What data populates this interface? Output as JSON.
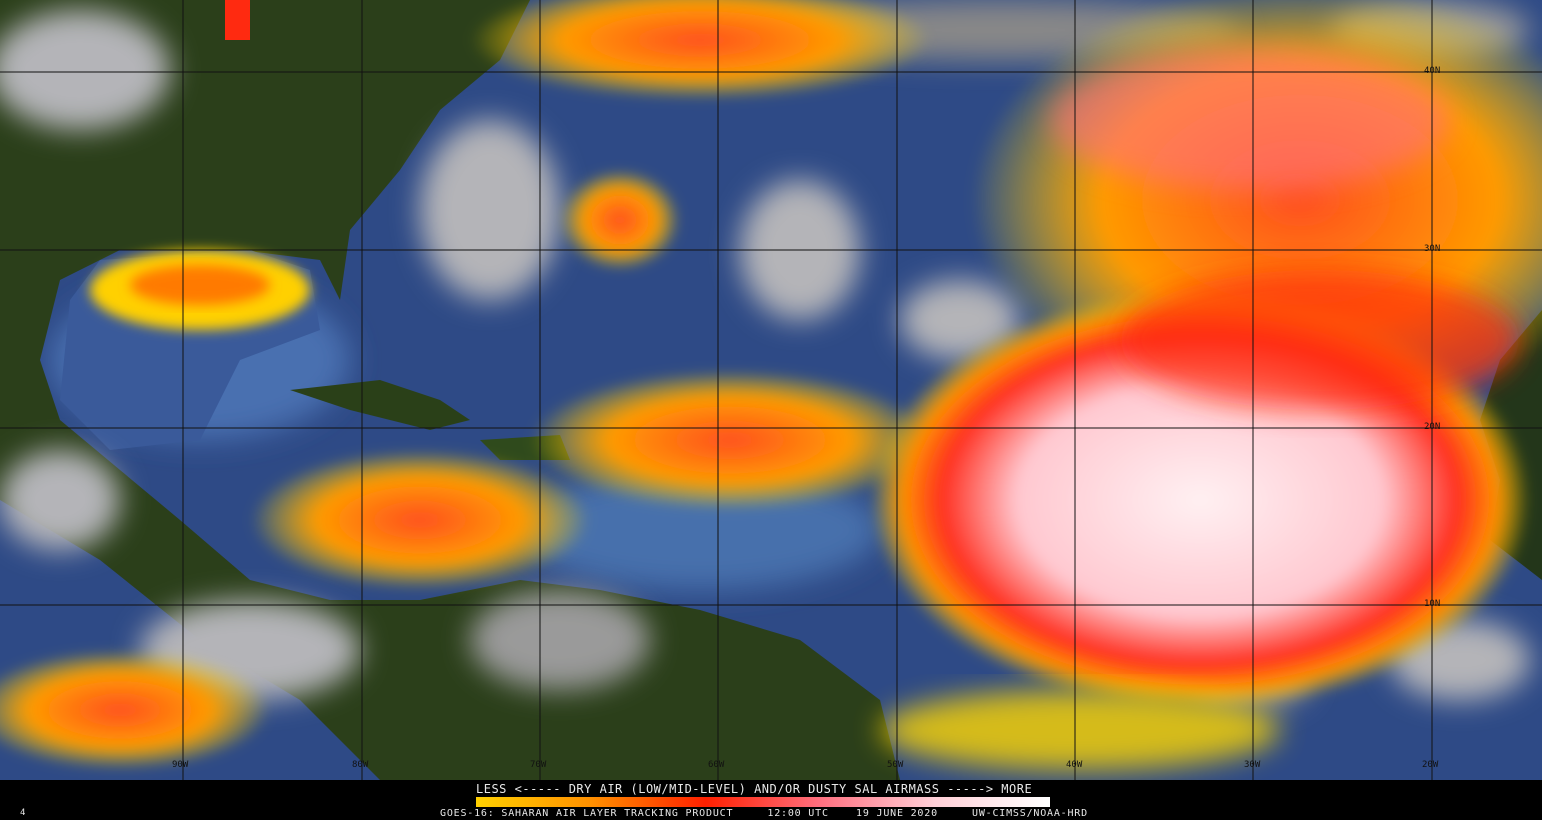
{
  "product": {
    "legend_title": "LESS <----- DRY AIR (LOW/MID-LEVEL) AND/OR DUSTY SAL AIRMASS -----> MORE",
    "credit_line": "GOES-16: SAHARAN AIR LAYER TRACKING PRODUCT     12:00 UTC    19 JUNE 2020     UW-CIMSS/NOAA-HRD",
    "corner_mark": "4"
  },
  "colorbar": {
    "label_low": "LESS",
    "label_high": "MORE",
    "colors": [
      "#ffd000",
      "#ff9000",
      "#ff2000",
      "#ff7080",
      "#ffd0d8",
      "#ffffff"
    ]
  },
  "grid": {
    "latitude_labels": [
      "40N",
      "30N",
      "20N",
      "10N"
    ],
    "longitude_labels": [
      "90W",
      "80W",
      "70W",
      "60W",
      "50W",
      "40W",
      "30W",
      "20W"
    ]
  },
  "colors": {
    "ocean": "#2e4a86",
    "land": "#2a3d18",
    "cloud": "#b8b8b8",
    "dust_low": "#ffd800",
    "dust_mid": "#ff3010",
    "dust_high": "#ffe8ec"
  }
}
